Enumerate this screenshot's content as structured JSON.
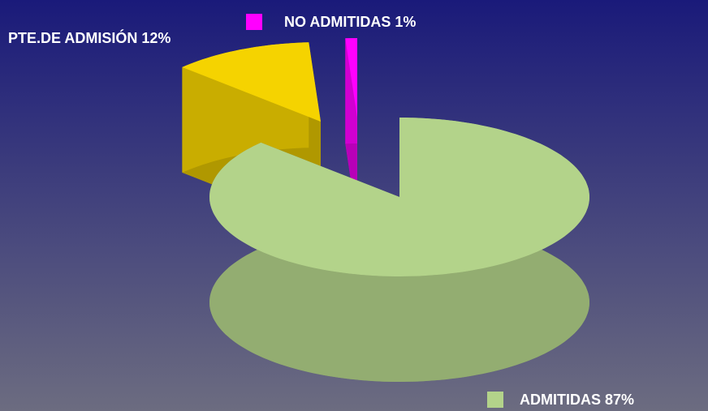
{
  "chart_data": {
    "type": "pie",
    "three_d": true,
    "values": [
      87,
      12,
      1
    ],
    "value_labels": [
      "ADMITIDAS 87%",
      "PTE.DE ADMISIÓN 12%",
      "NO ADMITIDAS 1%"
    ],
    "colors": [
      "#b3d38a",
      "#f5d300",
      "#ff00ff"
    ]
  }
}
